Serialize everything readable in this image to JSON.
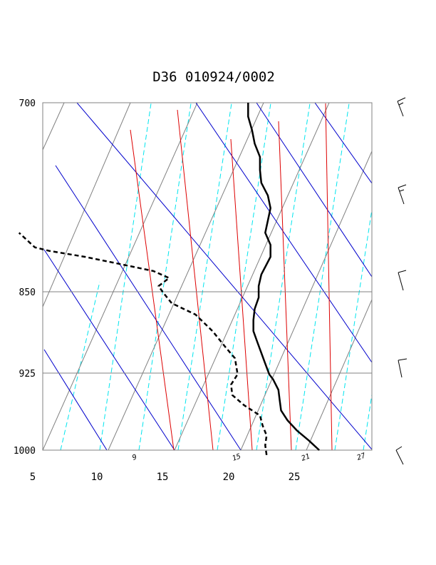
{
  "chart_data": {
    "type": "skew-t",
    "title": "D36 010924/0002",
    "pressure_ticks": [
      1000,
      925,
      850,
      700
    ],
    "temperature_ticks": [
      5,
      10,
      15,
      20,
      25
    ],
    "temperature_range": [
      5,
      30
    ],
    "pressure_range": [
      700,
      1000
    ],
    "mixing_ratio_labels": [
      "9",
      "15",
      "21",
      "27"
    ],
    "colors": {
      "temperature": "#000000",
      "dewpoint": "#000000",
      "dry_adiabat": "#0000cc",
      "moist_adiabat": "#808080",
      "isotherm_guide": "#808080",
      "mixing_ratio": "#00e5ee",
      "saturation_line": "#dd0000",
      "frame": "#808080"
    },
    "series": [
      {
        "line": "solid",
        "points": [
          [
            1000,
            26.0
          ],
          [
            990,
            25.2
          ],
          [
            980,
            24.3
          ],
          [
            970,
            23.6
          ],
          [
            960,
            23.1
          ],
          [
            950,
            23.0
          ],
          [
            940,
            22.9
          ],
          [
            930,
            22.5
          ],
          [
            925,
            22.2
          ],
          [
            915,
            21.9
          ],
          [
            905,
            21.6
          ],
          [
            895,
            21.3
          ],
          [
            885,
            21.0
          ],
          [
            875,
            21.0
          ],
          [
            865,
            21.1
          ],
          [
            855,
            21.4
          ],
          [
            845,
            21.4
          ],
          [
            835,
            21.6
          ],
          [
            820,
            22.3
          ],
          [
            810,
            22.3
          ],
          [
            800,
            21.9
          ],
          [
            790,
            22.1
          ],
          [
            780,
            22.3
          ],
          [
            770,
            22.1
          ],
          [
            760,
            21.6
          ],
          [
            750,
            21.5
          ],
          [
            740,
            21.5
          ],
          [
            730,
            21.1
          ],
          [
            720,
            20.9
          ],
          [
            710,
            20.6
          ],
          [
            700,
            20.6
          ]
        ]
      },
      {
        "line": "dashed",
        "points": [
          [
            1005,
            22.0
          ],
          [
            995,
            21.9
          ],
          [
            985,
            22.0
          ],
          [
            975,
            21.7
          ],
          [
            965,
            21.5
          ],
          [
            955,
            20.3
          ],
          [
            945,
            19.4
          ],
          [
            935,
            19.3
          ],
          [
            925,
            19.8
          ],
          [
            910,
            19.6
          ],
          [
            900,
            18.9
          ],
          [
            885,
            17.9
          ],
          [
            870,
            16.6
          ],
          [
            860,
            14.8
          ],
          [
            850,
            14.1
          ],
          [
            845,
            13.8
          ],
          [
            838,
            14.6
          ],
          [
            832,
            13.4
          ],
          [
            825,
            10.4
          ],
          [
            820,
            8.2
          ],
          [
            815,
            5.5
          ],
          [
            812,
            4.4
          ],
          [
            805,
            3.7
          ],
          [
            800,
            3.2
          ]
        ]
      }
    ],
    "wind_barbs": [
      {
        "pressure": 700,
        "barbs": "1 full, 1 half"
      },
      {
        "pressure": 775,
        "barbs": "1 full, 1 half"
      },
      {
        "pressure": 850,
        "barbs": "1 full"
      },
      {
        "pressure": 925,
        "barbs": "1 full"
      },
      {
        "pressure": 1000,
        "barbs": "1 half"
      }
    ]
  }
}
